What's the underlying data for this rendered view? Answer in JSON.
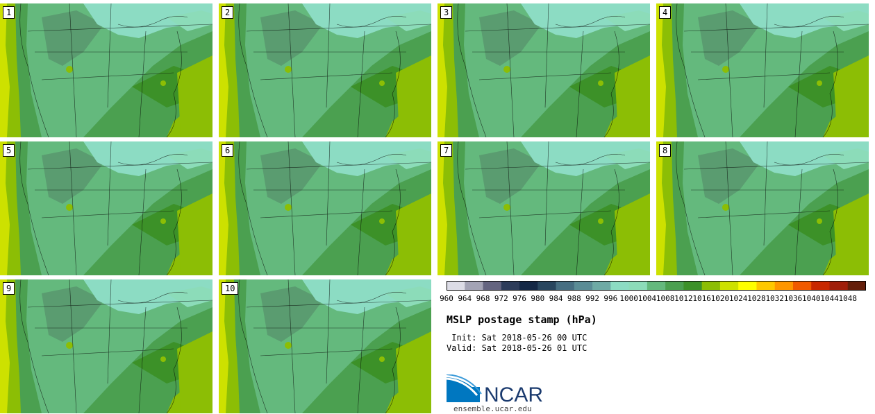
{
  "panels": [
    {
      "label": "1"
    },
    {
      "label": "2"
    },
    {
      "label": "3"
    },
    {
      "label": "4"
    },
    {
      "label": "5"
    },
    {
      "label": "6"
    },
    {
      "label": "7"
    },
    {
      "label": "8"
    },
    {
      "label": "9"
    },
    {
      "label": "10"
    }
  ],
  "colorbar": {
    "ticks": [
      "960",
      "964",
      "968",
      "972",
      "976",
      "980",
      "984",
      "988",
      "992",
      "996",
      "1000",
      "1004",
      "1008",
      "1012",
      "1016",
      "1020",
      "1024",
      "1028",
      "1032",
      "1036",
      "1040",
      "1044",
      "1048"
    ],
    "colors": [
      "#dcdce6",
      "#a3a3b5",
      "#646480",
      "#2d3c5a",
      "#142846",
      "#28465f",
      "#466e82",
      "#5a8c96",
      "#6eaaa5",
      "#8cdcc3",
      "#8cdcb9",
      "#64b97d",
      "#4ba050",
      "#3c9128",
      "#8cbe05",
      "#cde100",
      "#ffff00",
      "#ffc800",
      "#ff9600",
      "#f05a00",
      "#c82800",
      "#a01e0a",
      "#641e0a"
    ]
  },
  "text": {
    "title": "MSLP postage stamp (hPa)",
    "init": " Init: Sat 2018-05-26 00 UTC",
    "valid": "Valid: Sat 2018-05-26 01 UTC",
    "logo": "NCAR",
    "url": "ensemble.ucar.edu"
  }
}
